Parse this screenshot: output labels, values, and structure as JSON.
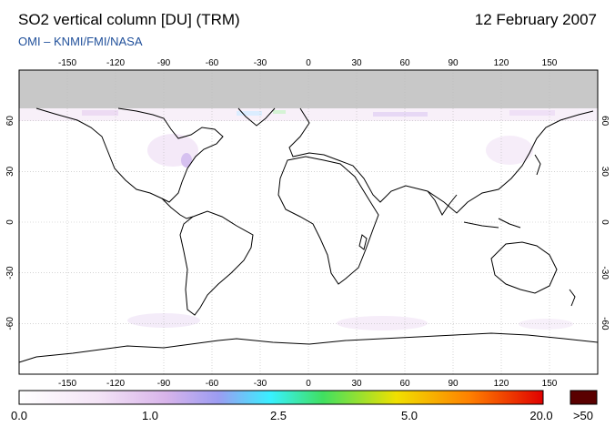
{
  "header": {
    "title": "SO2 vertical column [DU] (TRM)",
    "date": "12 February 2007",
    "credit": "OMI  –  KNMI/FMI/NASA"
  },
  "map": {
    "lon_ticks": [
      "-150",
      "-120",
      "-90",
      "-60",
      "-30",
      "0",
      "30",
      "60",
      "90",
      "120",
      "150"
    ],
    "lat_ticks": [
      "60",
      "30",
      "0",
      "-30",
      "-60"
    ],
    "colors": {
      "no_data": "#c8c8c8",
      "coast": "#000000",
      "grid": "#bbbbbb"
    }
  },
  "colorbar": {
    "labels": [
      "0.0",
      "1.0",
      "2.5",
      "5.0",
      "20.0"
    ],
    "over_label": ">50",
    "over_color": "#5a0000",
    "gradient_stops": [
      "#ffffff",
      "#f0d8f4",
      "#c8a0e0",
      "#8c8cf0",
      "#3cf0ff",
      "#40e060",
      "#f0e000",
      "#ff8000",
      "#e00000"
    ]
  }
}
